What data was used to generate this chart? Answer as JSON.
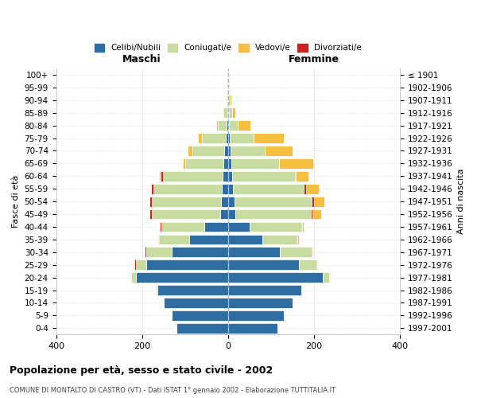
{
  "age_groups": [
    "0-4",
    "5-9",
    "10-14",
    "15-19",
    "20-24",
    "25-29",
    "30-34",
    "35-39",
    "40-44",
    "45-49",
    "50-54",
    "55-59",
    "60-64",
    "65-69",
    "70-74",
    "75-79",
    "80-84",
    "85-89",
    "90-94",
    "95-99",
    "100+"
  ],
  "birth_years": [
    "1997-2001",
    "1992-1996",
    "1987-1991",
    "1982-1986",
    "1977-1981",
    "1972-1976",
    "1967-1971",
    "1962-1966",
    "1957-1961",
    "1952-1956",
    "1947-1951",
    "1942-1946",
    "1937-1941",
    "1932-1936",
    "1927-1931",
    "1922-1926",
    "1917-1921",
    "1912-1916",
    "1907-1911",
    "1902-1906",
    "≤ 1901"
  ],
  "maschi": {
    "celibi": [
      120,
      130,
      150,
      165,
      215,
      190,
      130,
      90,
      55,
      18,
      17,
      14,
      12,
      10,
      8,
      6,
      4,
      2,
      1,
      0,
      0
    ],
    "coniugati": [
      0,
      0,
      0,
      2,
      10,
      25,
      60,
      70,
      100,
      160,
      160,
      160,
      140,
      90,
      75,
      55,
      20,
      8,
      3,
      1,
      0
    ],
    "divorziati": [
      0,
      0,
      0,
      0,
      1,
      3,
      3,
      3,
      3,
      4,
      5,
      5,
      4,
      0,
      0,
      0,
      0,
      0,
      0,
      0,
      0
    ],
    "vedovi": [
      0,
      0,
      0,
      0,
      0,
      2,
      1,
      1,
      1,
      2,
      2,
      2,
      4,
      5,
      10,
      8,
      4,
      2,
      1,
      0,
      0
    ]
  },
  "femmine": {
    "nubili": [
      115,
      130,
      150,
      170,
      220,
      165,
      120,
      80,
      50,
      18,
      15,
      12,
      10,
      8,
      6,
      5,
      3,
      2,
      1,
      0,
      0
    ],
    "coniugate": [
      0,
      0,
      0,
      2,
      15,
      40,
      75,
      80,
      120,
      175,
      180,
      165,
      145,
      110,
      80,
      55,
      20,
      8,
      3,
      1,
      0
    ],
    "divorziate": [
      0,
      0,
      0,
      0,
      1,
      2,
      2,
      2,
      2,
      4,
      5,
      4,
      3,
      0,
      0,
      0,
      0,
      0,
      0,
      0,
      0
    ],
    "vedove": [
      0,
      0,
      0,
      0,
      1,
      3,
      2,
      3,
      5,
      20,
      25,
      30,
      30,
      80,
      65,
      70,
      30,
      8,
      3,
      1,
      0
    ]
  },
  "colors": {
    "celibi_nubili": "#2E6DA4",
    "coniugati_e": "#C8DBA0",
    "vedovi_e": "#F5C040",
    "divorziati_e": "#CC2222"
  },
  "xlim": 400,
  "title_main": "Popolazione per età, sesso e stato civile - 2002",
  "title_sub": "COMUNE DI MONTALTO DI CASTRO (VT) - Dati ISTAT 1° gennaio 2002 - Elaborazione TUTTITALIA.IT",
  "ylabel": "Fasce di età",
  "ylabel2": "Anni di nascita",
  "xlabel_maschi": "Maschi",
  "xlabel_femmine": "Femmine",
  "bg_color": "#FFFFFF",
  "grid_color": "#CCCCCC",
  "bar_edge_color": "#FFFFFF",
  "legend_labels": [
    "Celibi/Nubili",
    "Coniugati/e",
    "Vedovi/e",
    "Divorziati/e"
  ]
}
